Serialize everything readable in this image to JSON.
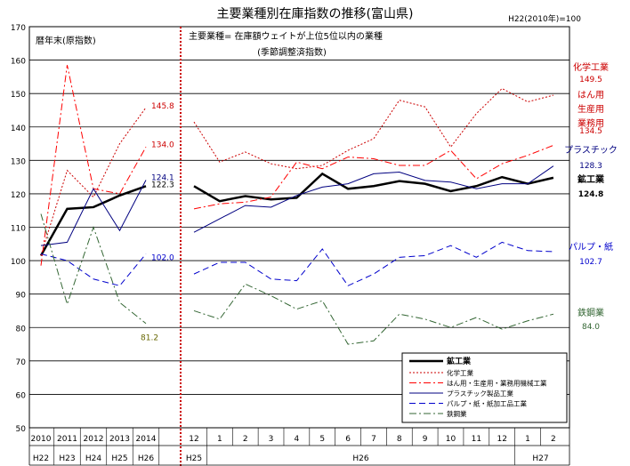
{
  "chart_data": {
    "type": "line",
    "title": "主要業種別在庫指数の推移(富山県)",
    "base_note": "H22(2010年)=100",
    "left_panel_label": "暦年末(原指数)",
    "right_panel_label": "主要業種= 在庫額ウェイトが上位5位以内の業種",
    "right_panel_sublabel": "(季節調整済指数)",
    "ylim": [
      50,
      170
    ],
    "yticks": [
      "50",
      "60",
      "70",
      "80",
      "90",
      "100",
      "110",
      "120",
      "130",
      "140",
      "150",
      "160",
      "170"
    ],
    "grid": "horizontal",
    "annual": {
      "x": [
        "2010",
        "2011",
        "2012",
        "2013",
        "2014"
      ],
      "era": [
        "H22",
        "H23",
        "H24",
        "H25",
        "H26"
      ]
    },
    "monthly": {
      "x": [
        "12",
        "1",
        "2",
        "3",
        "4",
        "5",
        "6",
        "7",
        "8",
        "9",
        "10",
        "11",
        "12",
        "1",
        "2"
      ],
      "era_labels": [
        {
          "text": "H25",
          "at": 0
        },
        {
          "text": "H26",
          "at": 6.5
        },
        {
          "text": "H27",
          "at": 13.5
        }
      ]
    },
    "series": [
      {
        "name": "鉱工業",
        "color": "#000000",
        "width": 2.5,
        "dash": "",
        "annual": [
          101.5,
          115.5,
          116,
          119.5,
          122.3
        ],
        "monthly": [
          122.3,
          117.8,
          119.3,
          118.3,
          118.8,
          126.0,
          121.5,
          122.3,
          123.8,
          123.0,
          120.8,
          122.3,
          125.0,
          123.0,
          124.8
        ],
        "end_label": "鉱工業",
        "end_value": "124.8",
        "end_label_color": "#000000",
        "annual_end_label": "122.3"
      },
      {
        "name": "化学工業",
        "color": "#cc0000",
        "width": 1,
        "dash": "2,2",
        "annual": [
          101.5,
          127.0,
          119.0,
          135.0,
          145.8
        ],
        "monthly": [
          141.5,
          129.5,
          132.5,
          129.0,
          127.5,
          128.5,
          133.0,
          136.5,
          148.0,
          146.0,
          134.0,
          144.0,
          151.5,
          147.5,
          149.5
        ],
        "end_label": "化学工業",
        "end_value": "149.5",
        "end_label_color": "#cc0000",
        "annual_end_label": "145.8"
      },
      {
        "name": "はん用・生産用・業務用機械工業",
        "color": "#ff0000",
        "width": 1,
        "dash": "8,3,2,3",
        "annual": [
          98.5,
          158.5,
          121.5,
          120.0,
          134.0
        ],
        "monthly": [
          115.5,
          117.0,
          117.5,
          119.0,
          129.5,
          127.5,
          131.0,
          130.5,
          128.5,
          128.5,
          133.0,
          124.5,
          129.0,
          131.5,
          134.5
        ],
        "end_label": "はん用 生産用 業務用",
        "end_value": "134.5",
        "end_label_color": "#cc0000",
        "annual_end_label": "134.0"
      },
      {
        "name": "プラスチック製品工業",
        "color": "#000080",
        "width": 1,
        "dash": "",
        "annual": [
          104.5,
          105.5,
          121.5,
          109.0,
          124.1
        ],
        "monthly": [
          108.5,
          112.5,
          116.5,
          116.0,
          119.5,
          122.0,
          123.0,
          126.0,
          126.5,
          124.0,
          123.5,
          121.5,
          123.0,
          123.0,
          128.3
        ],
        "end_label": "プラスチック",
        "end_value": "128.3",
        "end_label_color": "#000080",
        "annual_end_label": "124.1"
      },
      {
        "name": "パルプ・紙・紙加工品工業",
        "color": "#0000cc",
        "width": 1,
        "dash": "7,4",
        "annual": [
          102.0,
          100.0,
          94.5,
          92.5,
          102.0
        ],
        "monthly": [
          96.0,
          99.5,
          99.5,
          94.5,
          94.0,
          103.5,
          92.5,
          96.0,
          101.0,
          101.5,
          104.5,
          101.0,
          105.5,
          103.0,
          102.7
        ],
        "end_label": "パルプ・紙",
        "end_value": "102.7",
        "end_label_color": "#0000cc",
        "annual_end_label": "102.0"
      },
      {
        "name": "鉄鋼業",
        "color": "#336633",
        "width": 1,
        "dash": "8,3,2,3",
        "annual": [
          114.0,
          87.0,
          110.0,
          87.5,
          81.2
        ],
        "monthly": [
          85.0,
          82.5,
          93.0,
          89.5,
          85.5,
          88.0,
          75.0,
          76.0,
          84.0,
          82.5,
          80.0,
          83.0,
          79.5,
          82.0,
          84.0
        ],
        "end_label": "鉄鋼業",
        "end_value": "84.0",
        "end_label_color": "#336633",
        "annual_end_label": "81.2"
      }
    ],
    "legend_placement": "bottom-right"
  }
}
